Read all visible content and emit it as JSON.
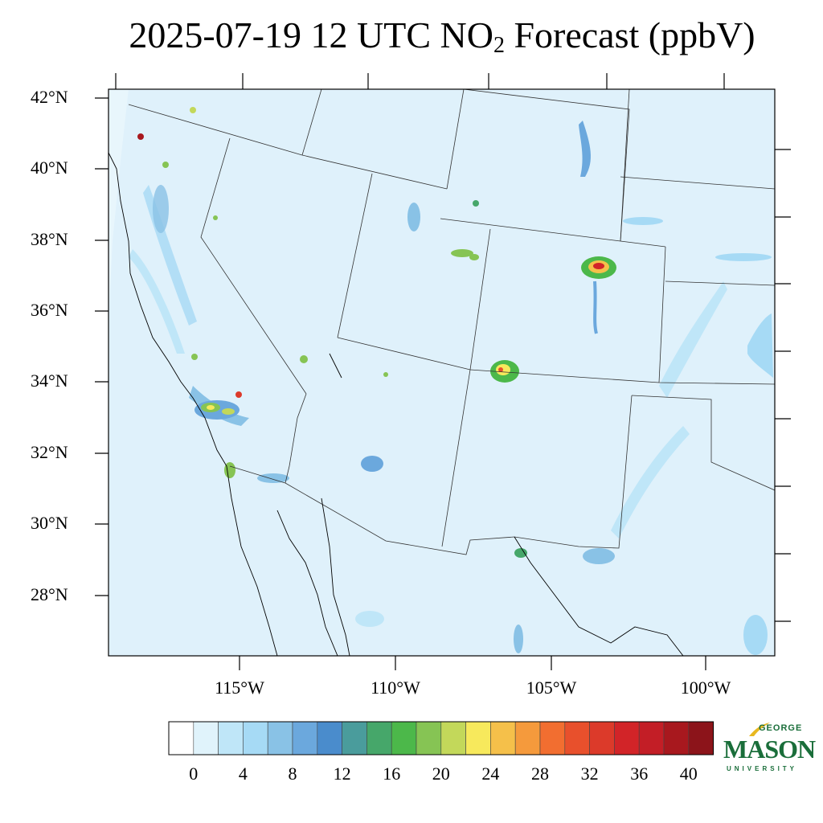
{
  "title": {
    "prefix": "2025-07-19 12 UTC NO",
    "subscript": "2",
    "suffix": " Forecast (ppbV)"
  },
  "map": {
    "latitude_labels": [
      "42°N",
      "40°N",
      "38°N",
      "36°N",
      "34°N",
      "32°N",
      "30°N",
      "28°N"
    ],
    "longitude_labels": [
      "115°W",
      "110°W",
      "105°W",
      "100°W"
    ],
    "background_color": "#dff1fb"
  },
  "colorbar": {
    "tick_labels": [
      "0",
      "4",
      "8",
      "12",
      "16",
      "20",
      "24",
      "28",
      "32",
      "36",
      "40"
    ],
    "colors": [
      "#ffffff",
      "#e0f3fb",
      "#bfe6f8",
      "#a6daf5",
      "#89c2e6",
      "#6ba8dd",
      "#4a8ccc",
      "#4a9c9c",
      "#46a76a",
      "#4cb84a",
      "#86c454",
      "#c3d85a",
      "#f7e95c",
      "#f5c04a",
      "#f59a3c",
      "#f26e30",
      "#e8502c",
      "#dc3a2a",
      "#d22428",
      "#c31e26",
      "#a8181e",
      "#8c141a"
    ]
  },
  "logo": {
    "line1": "GEORGE",
    "line2": "MASON",
    "line3": "UNIVERSITY",
    "color": "#1a6e3a",
    "accent": "#e8b820"
  }
}
